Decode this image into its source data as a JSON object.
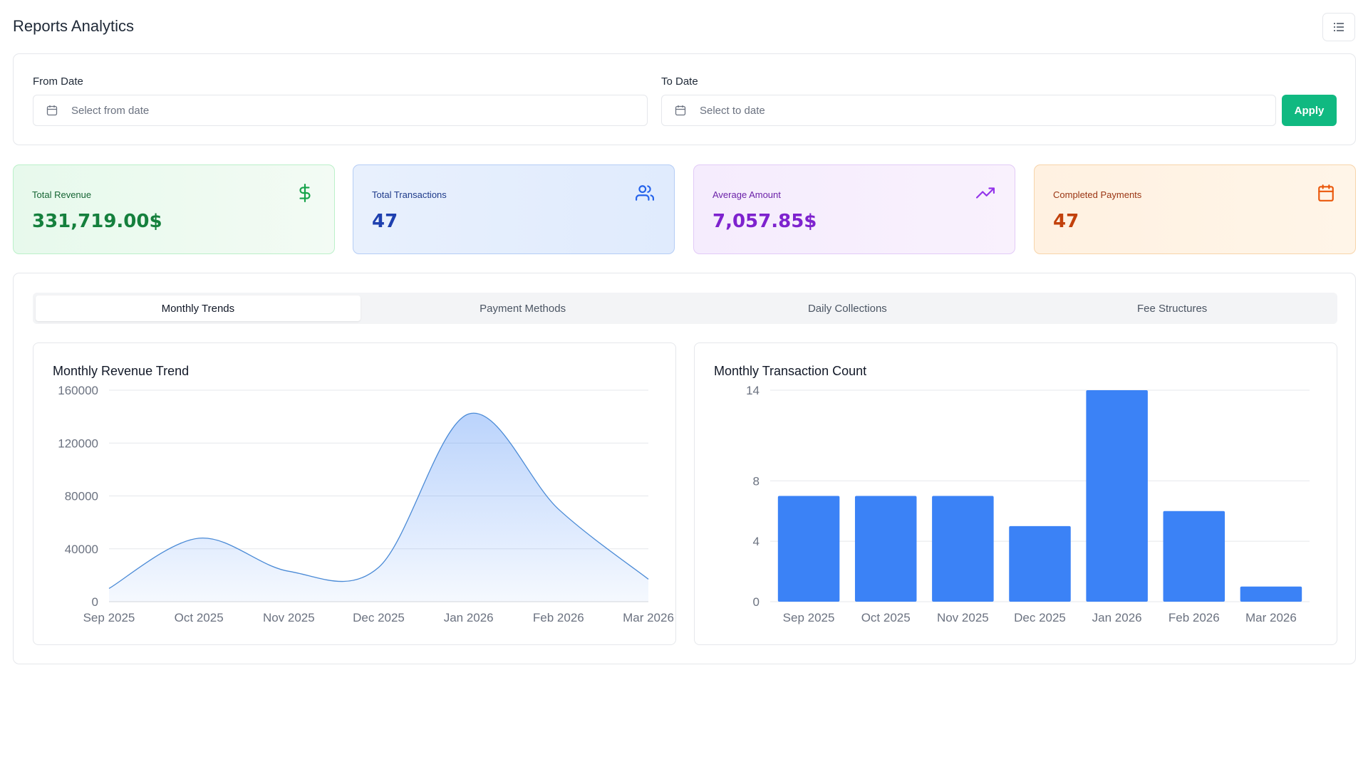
{
  "header": {
    "title": "Reports Analytics",
    "menu_icon": "list-icon"
  },
  "filters": {
    "from_label": "From Date",
    "from_placeholder": "Select from date",
    "to_label": "To Date",
    "to_placeholder": "Select to date",
    "apply_label": "Apply"
  },
  "stats": [
    {
      "label": "Total Revenue",
      "value": "331,719.00$",
      "icon": "dollar-icon",
      "label_color": "#166534",
      "value_color": "#15803d",
      "icon_color": "#16a34a"
    },
    {
      "label": "Total Transactions",
      "value": "47",
      "icon": "users-icon",
      "label_color": "#1e3a8a",
      "value_color": "#1e40af",
      "icon_color": "#2563eb"
    },
    {
      "label": "Average Amount",
      "value": "7,057.85$",
      "icon": "trending-up-icon",
      "label_color": "#6b21a8",
      "value_color": "#7e22ce",
      "icon_color": "#9333ea"
    },
    {
      "label": "Completed Payments",
      "value": "47",
      "icon": "calendar-icon",
      "label_color": "#9a3412",
      "value_color": "#c2410c",
      "icon_color": "#ea580c"
    }
  ],
  "tabs": [
    {
      "label": "Monthly Trends",
      "active": true
    },
    {
      "label": "Payment Methods",
      "active": false
    },
    {
      "label": "Daily Collections",
      "active": false
    },
    {
      "label": "Fee Structures",
      "active": false
    }
  ],
  "chart_data": [
    {
      "type": "area",
      "title": "Monthly Revenue Trend",
      "categories": [
        "Sep 2025",
        "Oct 2025",
        "Nov 2025",
        "Dec 2025",
        "Jan 2026",
        "Feb 2026",
        "Mar 2026"
      ],
      "values": [
        10000,
        48000,
        23000,
        26000,
        142000,
        70000,
        17000
      ],
      "y_ticks": [
        0,
        40000,
        80000,
        120000,
        160000
      ],
      "ylim": [
        0,
        160000
      ],
      "grid": true,
      "color": "#3b82f6"
    },
    {
      "type": "bar",
      "title": "Monthly Transaction Count",
      "categories": [
        "Sep 2025",
        "Oct 2025",
        "Nov 2025",
        "Dec 2025",
        "Jan 2026",
        "Feb 2026",
        "Mar 2026"
      ],
      "values": [
        7,
        7,
        7,
        5,
        14,
        6,
        1
      ],
      "y_ticks": [
        0,
        4,
        8,
        14
      ],
      "ylim": [
        0,
        14
      ],
      "grid": true,
      "color": "#3b82f6"
    }
  ]
}
